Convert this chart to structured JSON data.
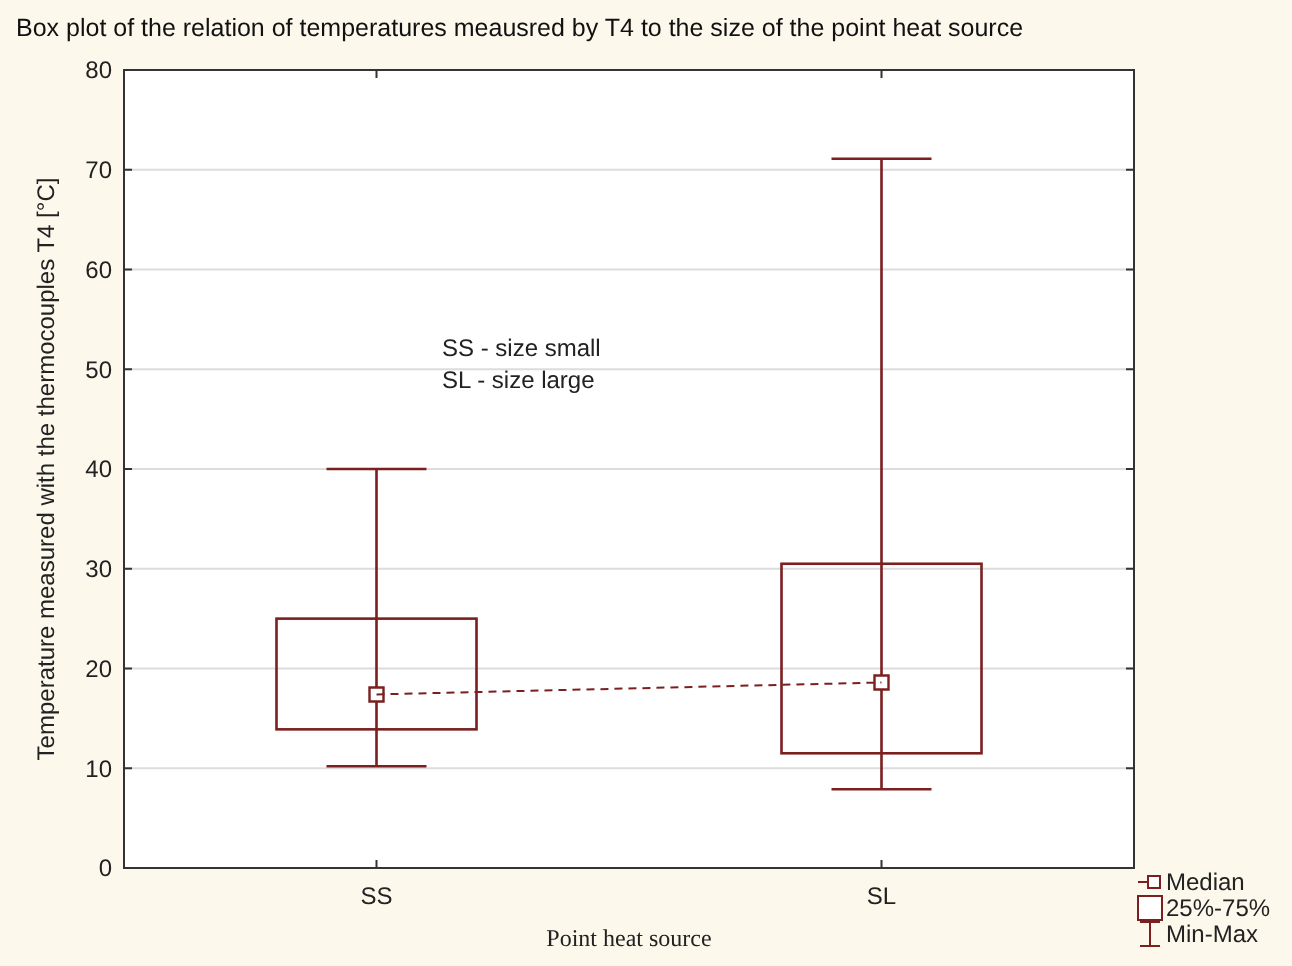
{
  "chart_data": {
    "type": "box",
    "title": "Box plot of the relation of temperatures meausred by T4 to the size of the point heat source",
    "xlabel": "Point heat source",
    "ylabel": "Temperature measured with the thermocouples T4 [°C]",
    "categories": [
      "SS",
      "SL"
    ],
    "ylim": [
      0,
      80
    ],
    "yticks": [
      0,
      10,
      20,
      30,
      40,
      50,
      60,
      70,
      80
    ],
    "grid": "y",
    "legend": "bottom right",
    "annotations": [
      "SS - size small",
      "SL - size large",
      "Median",
      "Min-Max"
    ],
    "series": [
      {
        "name": "25%-75%",
        "color": "#7b1f1f",
        "boxes": [
          {
            "low": 10.2,
            "q1": 13.9,
            "median": 17.4,
            "q3": 25,
            "high": 40
          },
          {
            "low": 7.9,
            "q1": 11.5,
            "median": 18.6,
            "q3": 30.5,
            "high": 71.1
          }
        ]
      },
      {
        "type": "line",
        "color": "#7b1f1f",
        "values": [
          17.4,
          18.6
        ],
        "line_style": "dashed"
      }
    ]
  }
}
